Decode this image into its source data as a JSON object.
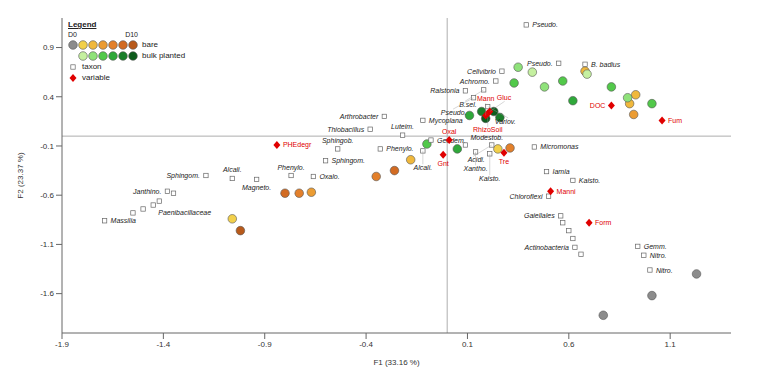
{
  "chart_data": {
    "type": "scatter",
    "x_label": "F1 (33.16 %)",
    "y_label": "F2 (23.37 %)",
    "xlim": [
      -1.9,
      1.4
    ],
    "xticks": [
      -1.9,
      -1.4,
      -0.9,
      -0.4,
      0.1,
      0.6,
      1.1
    ],
    "ylim": [
      -2.0,
      1.2
    ],
    "yticks": [
      -1.6,
      -1.1,
      -0.6,
      -0.1,
      0.4,
      0.9
    ],
    "grid": false,
    "legend": "top-left",
    "legend_title": "Legend",
    "day_labels": [
      "D0",
      "D10"
    ],
    "series": [
      {
        "name": "bare",
        "marker": "circle",
        "palette": [
          "#8c8c8c",
          "#f2d04b",
          "#f0b83c",
          "#eb9c33",
          "#e3802b",
          "#d26b22",
          "#b85a1b"
        ],
        "x": [
          1.23,
          1.01,
          0.77,
          -1.06,
          -1.02,
          -0.8,
          -0.73,
          -0.67,
          -0.35,
          -0.26,
          -0.18,
          0.25,
          0.31,
          0.9,
          0.92,
          0.93,
          0.68
        ],
        "y": [
          -1.4,
          -1.62,
          -1.82,
          -0.84,
          -0.96,
          -0.58,
          -0.58,
          -0.57,
          -0.41,
          -0.35,
          -0.24,
          -0.13,
          -0.12,
          0.33,
          0.22,
          0.42,
          0.66
        ],
        "colors": [
          "#8c8c8c",
          "#8c8c8c",
          "#8c8c8c",
          "#f2d04b",
          "#b85a1b",
          "#d26b22",
          "#e3802b",
          "#eb9c33",
          "#e3802b",
          "#d26b22",
          "#f0b83c",
          "#f2d04b",
          "#e3802b",
          "#f0b83c",
          "#eb9c33",
          "#f0b83c",
          "#f0b83c"
        ]
      },
      {
        "name": "bulk planted",
        "marker": "circle",
        "palette": [
          "#c5f0a0",
          "#8fe27a",
          "#52c94a",
          "#2fa83a",
          "#1a7f2a",
          "#0e5c1c"
        ],
        "x": [
          0.35,
          0.42,
          0.57,
          0.69,
          0.81,
          0.89,
          1.01,
          0.62,
          0.48,
          0.17,
          0.23,
          0.19,
          0.26,
          0.11,
          -0.1,
          0.05,
          0.33
        ],
        "y": [
          0.7,
          0.65,
          0.56,
          0.63,
          0.5,
          0.39,
          0.33,
          0.36,
          0.5,
          0.25,
          0.25,
          0.18,
          0.19,
          0.21,
          -0.08,
          -0.13,
          0.54
        ],
        "colors": [
          "#8fe27a",
          "#c5f0a0",
          "#52c94a",
          "#c5f0a0",
          "#52c94a",
          "#8fe27a",
          "#52c94a",
          "#2fa83a",
          "#8fe27a",
          "#1a7f2a",
          "#0e5c1c",
          "#0e5c1c",
          "#1a7f2a",
          "#2fa83a",
          "#52c94a",
          "#2fa83a",
          "#52c94a"
        ]
      },
      {
        "name": "taxon",
        "marker": "square",
        "color": "#ffffff",
        "x": [
          0.39,
          0.55,
          0.68,
          0.27,
          0.24,
          0.18,
          0.09,
          0.13,
          0.2,
          -0.12,
          -0.31,
          -0.38,
          -0.22,
          -0.54,
          -0.6,
          -0.33,
          -0.77,
          -0.66,
          -1.06,
          -0.94,
          -1.19,
          -1.38,
          -1.45,
          -1.69,
          -0.08,
          0.09,
          -0.12,
          0.22,
          0.14,
          0.21,
          0.43,
          0.49,
          0.62,
          0.5,
          0.56,
          0.63,
          0.94,
          0.97,
          1.0,
          -1.55,
          -1.5,
          -1.42,
          -1.35,
          0.57,
          0.6,
          0.62,
          0.66
        ],
        "y": [
          1.13,
          0.74,
          0.73,
          0.66,
          0.56,
          0.47,
          0.46,
          0.39,
          0.3,
          0.16,
          0.2,
          0.07,
          0.01,
          -0.13,
          -0.25,
          -0.13,
          -0.4,
          -0.41,
          -0.43,
          -0.44,
          -0.4,
          -0.56,
          -0.7,
          -0.86,
          -0.04,
          -0.09,
          -0.15,
          -0.09,
          -0.16,
          -0.18,
          -0.11,
          -0.36,
          -0.45,
          -0.61,
          -0.81,
          -1.13,
          -1.12,
          -1.21,
          -1.36,
          -0.78,
          -0.74,
          -0.66,
          -0.58,
          -0.88,
          -0.96,
          -1.04,
          -1.2
        ],
        "labels": [
          "Pseudo.",
          "Pseudo.",
          "B. badius",
          "Cellvibrio",
          "Achromo.",
          "B.sel.",
          "Ralstonia",
          "Pseudo.",
          "Variov.",
          "Mycoplana",
          "Arthrobacter",
          "Thiobacillus",
          "Luteim.",
          "Sphingob.",
          "Sphingom.",
          "Phenylo.",
          "Phenylo.",
          "Oxalo.",
          "Alcali.",
          "Magneto.",
          "Sphingom.",
          "Janthino.",
          "Paenibacillaceae",
          "Massilia",
          "Geodem.",
          "Modestob.",
          "Alcali.",
          "Acidi.",
          "Xantho.",
          "Kaisto.",
          "Micromonas",
          "Iamia",
          "Kaisto.",
          "Chloroflexi",
          "Gaiellales",
          "Actinobacteria",
          "Gemm.",
          "Nitro.",
          "Nitro.",
          null,
          null,
          null,
          null,
          null,
          null,
          null,
          null
        ]
      },
      {
        "name": "variable",
        "marker": "diamond",
        "color": "#e00000",
        "x": [
          0.2,
          0.21,
          0.19,
          0.81,
          1.06,
          -0.84,
          0.01,
          -0.02,
          0.28,
          0.51,
          0.7
        ],
        "y": [
          0.23,
          0.25,
          0.21,
          0.31,
          0.16,
          -0.09,
          -0.04,
          -0.19,
          -0.17,
          -0.56,
          -0.88
        ],
        "labels": [
          "RhizoSoil",
          "Gluc",
          "Mann",
          "DOC",
          "Fum",
          "PHEdegr",
          "Oxal",
          "Gnt",
          "Tre",
          "Manni",
          "Form"
        ]
      }
    ]
  }
}
